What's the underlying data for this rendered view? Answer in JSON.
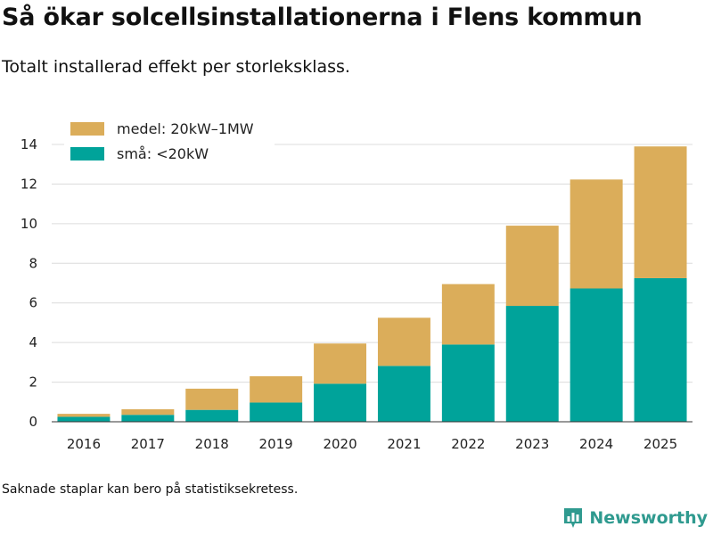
{
  "title": "Så ökar solcellsinstallationerna i Flens kommun",
  "subtitle": "Totalt installerad effekt per storleksklass.",
  "footnote": "Saknade staplar kan bero på statistiksekretess.",
  "brand": {
    "name": "Newsworthy",
    "icon": "bar-chart-logo-icon",
    "color": "#2f9a8f"
  },
  "chart_data": {
    "type": "bar",
    "stacked": true,
    "categories": [
      "2016",
      "2017",
      "2018",
      "2019",
      "2020",
      "2021",
      "2022",
      "2023",
      "2024",
      "2025"
    ],
    "series": [
      {
        "name": "små: <20kW",
        "color": "#00a39a",
        "values": [
          0.25,
          0.35,
          0.6,
          0.97,
          1.92,
          2.82,
          3.9,
          5.85,
          6.73,
          7.25
        ]
      },
      {
        "name": "medel: 20kW–1MW",
        "color": "#dbad5a",
        "values": [
          0.15,
          0.28,
          1.07,
          1.33,
          2.03,
          2.43,
          3.05,
          4.05,
          5.5,
          6.65
        ]
      }
    ],
    "legend_order": [
      "medel: 20kW–1MW",
      "små: <20kW"
    ],
    "legend_position": "top-left",
    "ylim": [
      0,
      14
    ],
    "yticks": [
      0,
      2,
      4,
      6,
      8,
      10,
      12,
      14
    ],
    "grid": true,
    "xlabel": "",
    "ylabel": ""
  }
}
